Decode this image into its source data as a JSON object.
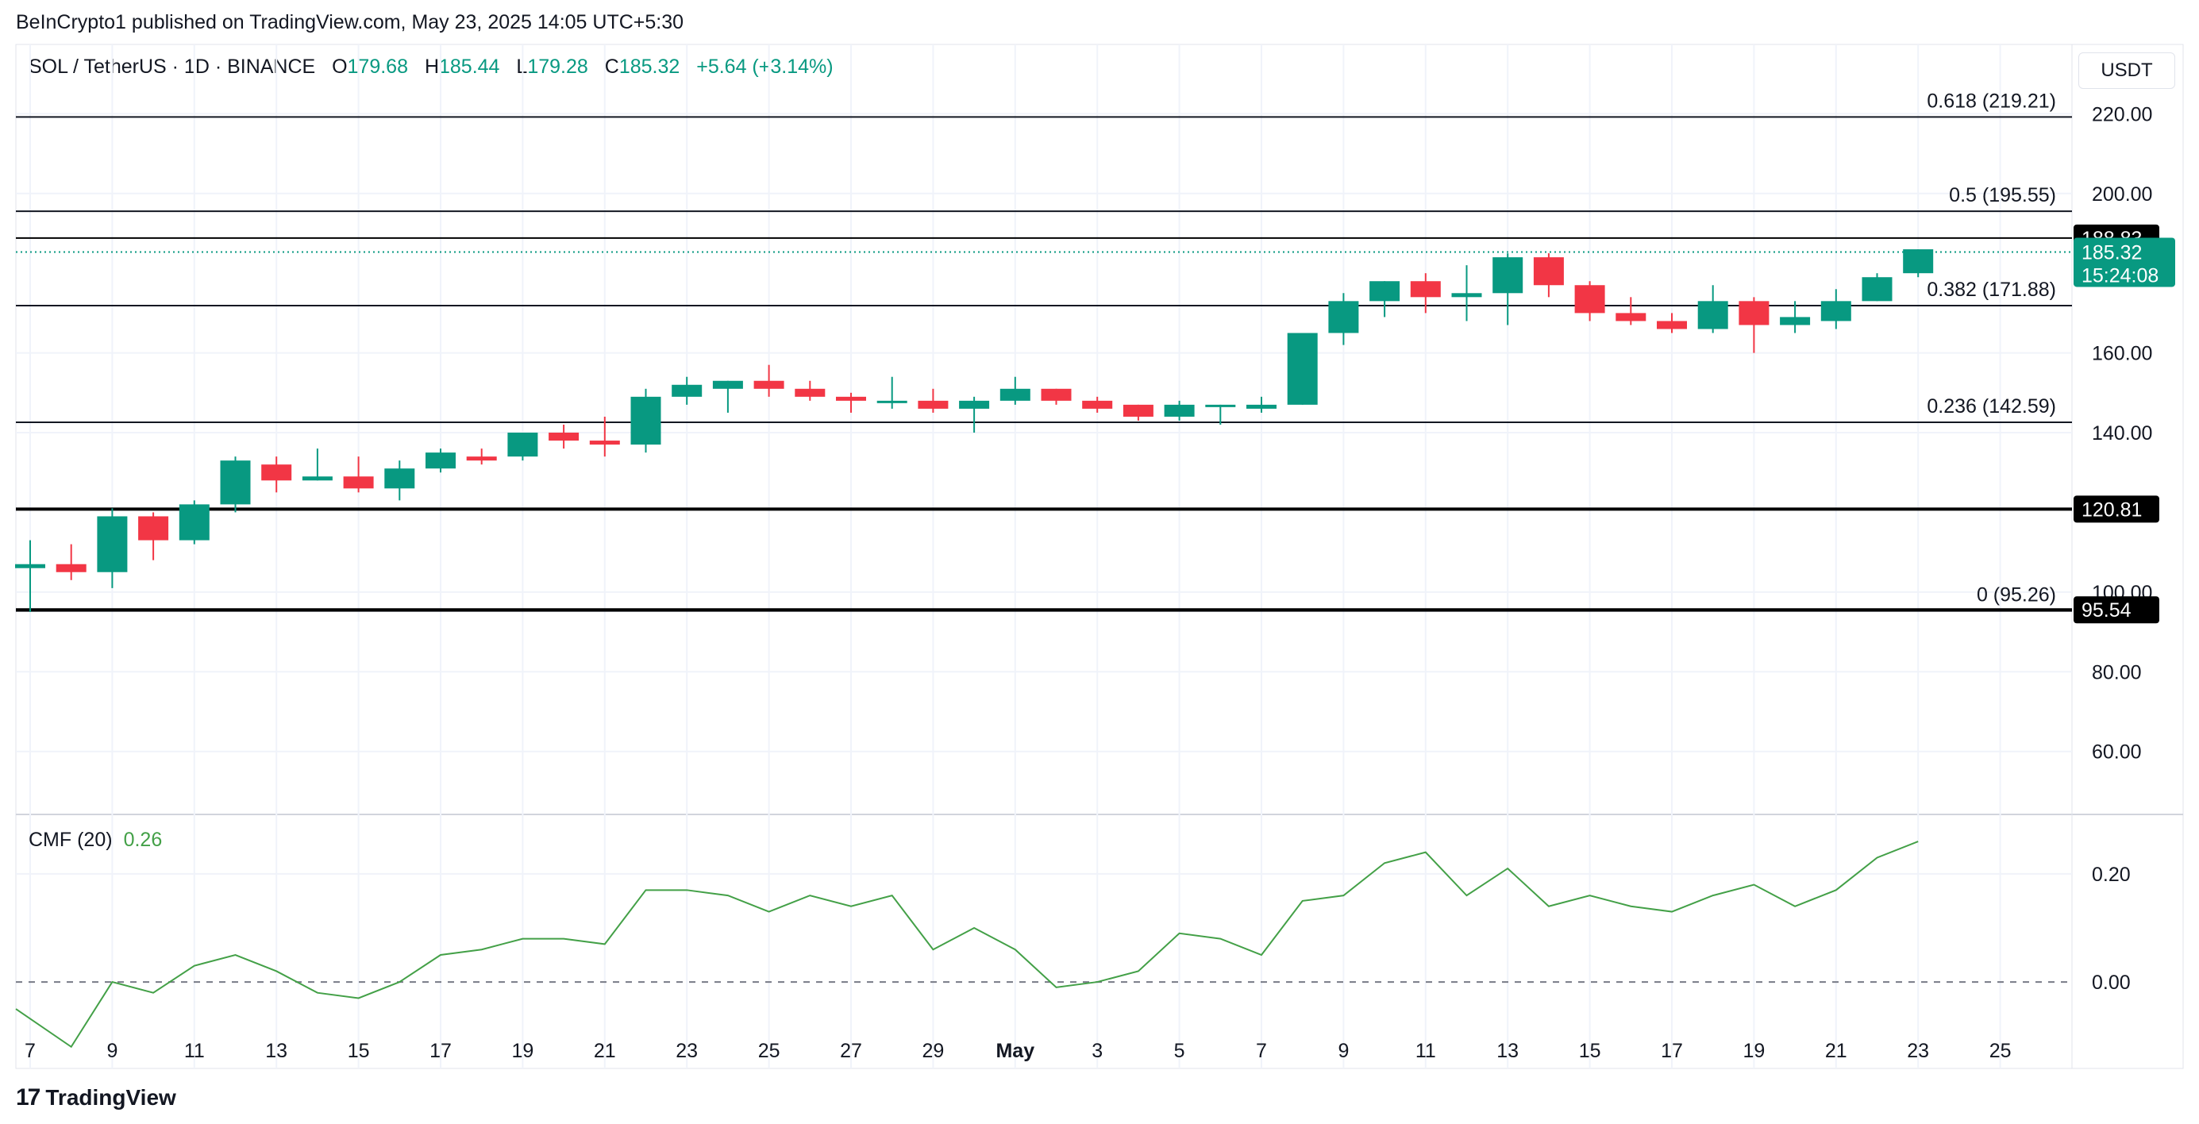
{
  "header": {
    "published": "BeInCrypto1 published on TradingView.com, May 23, 2025 14:05 UTC+5:30"
  },
  "legend": {
    "symbol": "SOL / TetherUS · 1D · BINANCE",
    "o_key": "O",
    "o_val": "179.68",
    "h_key": "H",
    "h_val": "185.44",
    "l_key": "L",
    "l_val": "179.28",
    "c_key": "C",
    "c_val": "185.32",
    "change": "+5.64 (+3.14%)"
  },
  "currency": "USDT",
  "indicator": {
    "name": "CMF (20)",
    "value": "0.26"
  },
  "footer": {
    "brand": "TradingView"
  },
  "colors": {
    "up": "#089981",
    "down": "#f23645",
    "cmf": "#43a047",
    "grid": "#f0f3fa",
    "level": "#131722"
  },
  "chart_data": {
    "type": "candlestick",
    "x_ticks": [
      "7",
      "9",
      "11",
      "13",
      "15",
      "17",
      "19",
      "21",
      "23",
      "25",
      "27",
      "29",
      "May",
      "3",
      "5",
      "7",
      "9",
      "11",
      "13",
      "15",
      "17",
      "19",
      "21",
      "23",
      "25"
    ],
    "y_ticks": [
      "220.00",
      "200.00",
      "160.00",
      "140.00",
      "100.00",
      "80.00",
      "60.00"
    ],
    "ylim": [
      45,
      237
    ],
    "candles": [
      {
        "o": 106,
        "h": 113,
        "l": 95,
        "c": 107
      },
      {
        "o": 107,
        "h": 112,
        "l": 103,
        "c": 105
      },
      {
        "o": 105,
        "h": 121,
        "l": 101,
        "c": 119
      },
      {
        "o": 119,
        "h": 120,
        "l": 108,
        "c": 113
      },
      {
        "o": 113,
        "h": 123,
        "l": 112,
        "c": 122
      },
      {
        "o": 122,
        "h": 134,
        "l": 120,
        "c": 133
      },
      {
        "o": 132,
        "h": 134,
        "l": 125,
        "c": 128
      },
      {
        "o": 128,
        "h": 136,
        "l": 128,
        "c": 129
      },
      {
        "o": 129,
        "h": 134,
        "l": 125,
        "c": 126
      },
      {
        "o": 126,
        "h": 133,
        "l": 123,
        "c": 131
      },
      {
        "o": 131,
        "h": 136,
        "l": 130,
        "c": 135
      },
      {
        "o": 134,
        "h": 136,
        "l": 132,
        "c": 133
      },
      {
        "o": 134,
        "h": 140,
        "l": 133,
        "c": 140
      },
      {
        "o": 140,
        "h": 142,
        "l": 136,
        "c": 138
      },
      {
        "o": 138,
        "h": 144,
        "l": 134,
        "c": 137
      },
      {
        "o": 137,
        "h": 151,
        "l": 135,
        "c": 149
      },
      {
        "o": 149,
        "h": 154,
        "l": 147,
        "c": 152
      },
      {
        "o": 151,
        "h": 153,
        "l": 145,
        "c": 153
      },
      {
        "o": 153,
        "h": 157,
        "l": 149,
        "c": 151
      },
      {
        "o": 151,
        "h": 153,
        "l": 148,
        "c": 149
      },
      {
        "o": 149,
        "h": 150,
        "l": 145,
        "c": 148
      },
      {
        "o": 148,
        "h": 154,
        "l": 146,
        "c": 148
      },
      {
        "o": 148,
        "h": 151,
        "l": 145,
        "c": 146
      },
      {
        "o": 146,
        "h": 149,
        "l": 140,
        "c": 148
      },
      {
        "o": 148,
        "h": 154,
        "l": 147,
        "c": 151
      },
      {
        "o": 151,
        "h": 151,
        "l": 147,
        "c": 148
      },
      {
        "o": 148,
        "h": 149,
        "l": 145,
        "c": 146
      },
      {
        "o": 147,
        "h": 147,
        "l": 143,
        "c": 144
      },
      {
        "o": 144,
        "h": 148,
        "l": 143,
        "c": 147
      },
      {
        "o": 147,
        "h": 147,
        "l": 142,
        "c": 147
      },
      {
        "o": 146,
        "h": 149,
        "l": 145,
        "c": 147
      },
      {
        "o": 147,
        "h": 165,
        "l": 147,
        "c": 165
      },
      {
        "o": 165,
        "h": 175,
        "l": 162,
        "c": 173
      },
      {
        "o": 173,
        "h": 178,
        "l": 169,
        "c": 178
      },
      {
        "o": 178,
        "h": 180,
        "l": 170,
        "c": 174
      },
      {
        "o": 174,
        "h": 182,
        "l": 168,
        "c": 175
      },
      {
        "o": 175,
        "h": 185,
        "l": 167,
        "c": 184
      },
      {
        "o": 184,
        "h": 185,
        "l": 174,
        "c": 177
      },
      {
        "o": 177,
        "h": 178,
        "l": 168,
        "c": 170
      },
      {
        "o": 170,
        "h": 174,
        "l": 167,
        "c": 168
      },
      {
        "o": 168,
        "h": 170,
        "l": 165,
        "c": 166
      },
      {
        "o": 166,
        "h": 177,
        "l": 165,
        "c": 173
      },
      {
        "o": 173,
        "h": 174,
        "l": 160,
        "c": 167
      },
      {
        "o": 167,
        "h": 173,
        "l": 165,
        "c": 169
      },
      {
        "o": 168,
        "h": 176,
        "l": 166,
        "c": 173
      },
      {
        "o": 173,
        "h": 180,
        "l": 173,
        "c": 179
      },
      {
        "o": 180,
        "h": 186,
        "l": 179,
        "c": 186
      }
    ],
    "fib_levels": [
      {
        "label": "0.618 (219.21)",
        "value": 219.21
      },
      {
        "label": "0.5 (195.55)",
        "value": 195.55
      },
      {
        "label": "0.382 (171.88)",
        "value": 171.88
      },
      {
        "label": "0.236 (142.59)",
        "value": 142.59
      },
      {
        "label": "0 (95.26)",
        "value": 95.26
      }
    ],
    "sr_levels": [
      {
        "label": "188.83",
        "value": 188.83
      },
      {
        "label": "120.81",
        "value": 120.81
      },
      {
        "label": "95.54",
        "value": 95.54
      }
    ],
    "last_price": {
      "value": 185.32,
      "label": "185.32",
      "countdown": "15:24:08"
    },
    "cmf": {
      "y_ticks": [
        "0.20",
        "0.00"
      ],
      "ylim": [
        -0.16,
        0.31
      ],
      "values": [
        -0.05,
        -0.12,
        0.0,
        -0.02,
        0.03,
        0.05,
        0.02,
        -0.02,
        -0.03,
        0.0,
        0.05,
        0.06,
        0.08,
        0.08,
        0.07,
        0.17,
        0.17,
        0.16,
        0.13,
        0.16,
        0.14,
        0.16,
        0.06,
        0.1,
        0.06,
        -0.01,
        0.0,
        0.02,
        0.09,
        0.08,
        0.05,
        0.15,
        0.16,
        0.22,
        0.24,
        0.16,
        0.21,
        0.14,
        0.16,
        0.14,
        0.13,
        0.16,
        0.18,
        0.14,
        0.17,
        0.23,
        0.26
      ]
    }
  }
}
